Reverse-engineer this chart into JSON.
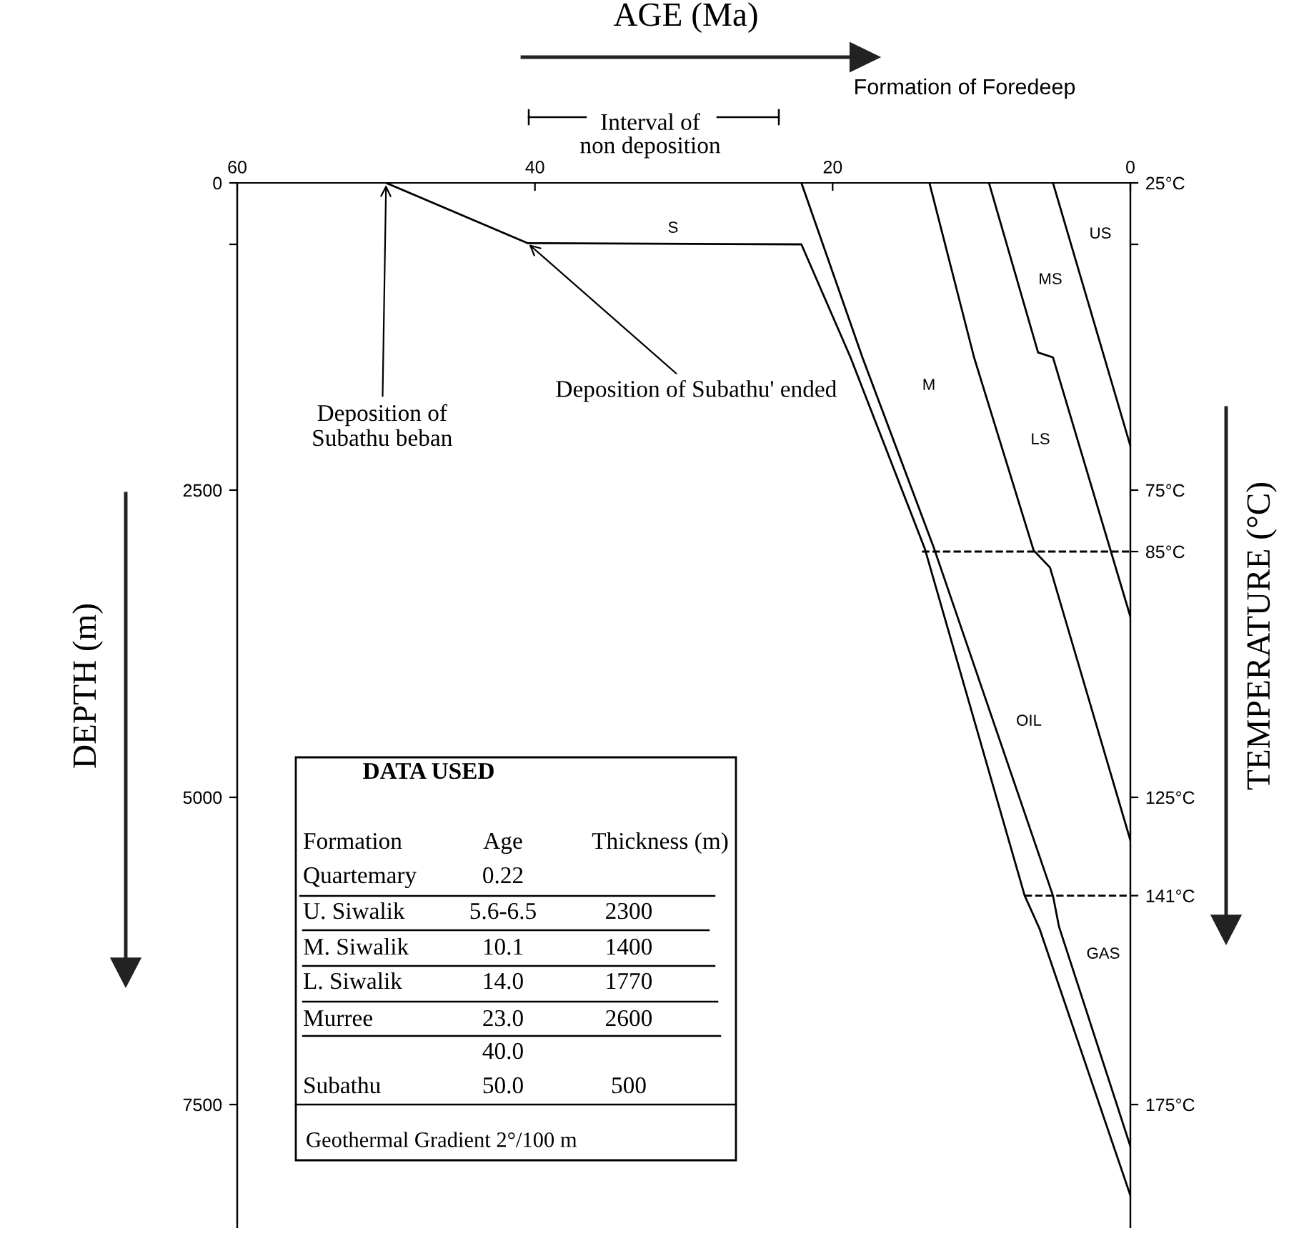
{
  "chart_data": {
    "type": "line",
    "xlabel": "AGE (Ma)",
    "ylabel": "DEPTH (m)",
    "y2label": "TEMPERATURE (°C)",
    "xlim": [
      60,
      0
    ],
    "xticks": [
      60,
      40,
      20,
      0
    ],
    "ylim": [
      8500,
      0
    ],
    "yticks": [
      0,
      {
        "value": 500,
        "label": null
      },
      2500,
      5000,
      7500
    ],
    "y2lim": [
      195,
      25
    ],
    "y2ticks": [
      {
        "value": 25,
        "label": "25°C"
      },
      {
        "value": 35,
        "label": null
      },
      {
        "value": 75,
        "label": "75°C"
      },
      {
        "value": 85,
        "label": "85°C"
      },
      {
        "value": 125,
        "label": "125°C"
      },
      {
        "value": 141,
        "label": "141°C"
      },
      {
        "value": 175,
        "label": "175°C"
      }
    ],
    "series": [
      {
        "color": "#000000",
        "x": [
          50,
          40.5,
          22.1,
          18.8,
          13.8,
          7.1,
          6.1,
          0
        ],
        "values": [
          0,
          490,
          500,
          1420,
          2980,
          5800,
          6070,
          8240
        ]
      },
      {
        "color": "#000000",
        "x": [
          22.1,
          18.0,
          13.2,
          5.2,
          4.8,
          0
        ],
        "values": [
          0,
          1420,
          2970,
          5800,
          6050,
          7840
        ]
      },
      {
        "color": "#000000",
        "x": [
          13.5,
          10.5,
          6.5,
          5.4,
          0
        ],
        "values": [
          0,
          1420,
          2990,
          3130,
          5350
        ]
      },
      {
        "color": "#000000",
        "x": [
          9.5,
          6.2,
          5.2,
          0
        ],
        "values": [
          0,
          1380,
          1420,
          3530
        ]
      },
      {
        "color": "#000000",
        "x": [
          5.2,
          0
        ],
        "values": [
          0,
          2140
        ]
      },
      {
        "color": "#000000",
        "axis": "y2",
        "line_style": "dashed",
        "x": [
          14.0,
          0
        ],
        "values": [
          85,
          85
        ]
      },
      {
        "color": "#000000",
        "axis": "y2",
        "line_style": "dashed",
        "x": [
          7.1,
          0
        ],
        "values": [
          141,
          141
        ]
      }
    ],
    "annotations": [
      {
        "text": "Deposition of\nSubathu beban",
        "x": 50,
        "y": 0
      },
      {
        "text": "Deposition of Subathu' ended",
        "x": 40.5,
        "y": 490
      },
      "Interval of\nnon deposition",
      "Formation of Foredeep",
      "S",
      "US",
      "MS",
      "M",
      "LS",
      "OIL",
      "GAS",
      "DATA USED",
      "Formation",
      "Age",
      "Thickness (m)",
      "Quartemary",
      "0.22",
      "U. Siwalik",
      "5.6-6.5",
      "2300",
      "M. Siwalik",
      "10.1",
      "1400",
      "L. Siwalik",
      "14.0",
      "1770",
      "Murree",
      "23.0",
      "2600",
      "40.0",
      "Subathu",
      "50.0",
      "500",
      "Geothermal Gradient 2°/100 m"
    ]
  }
}
